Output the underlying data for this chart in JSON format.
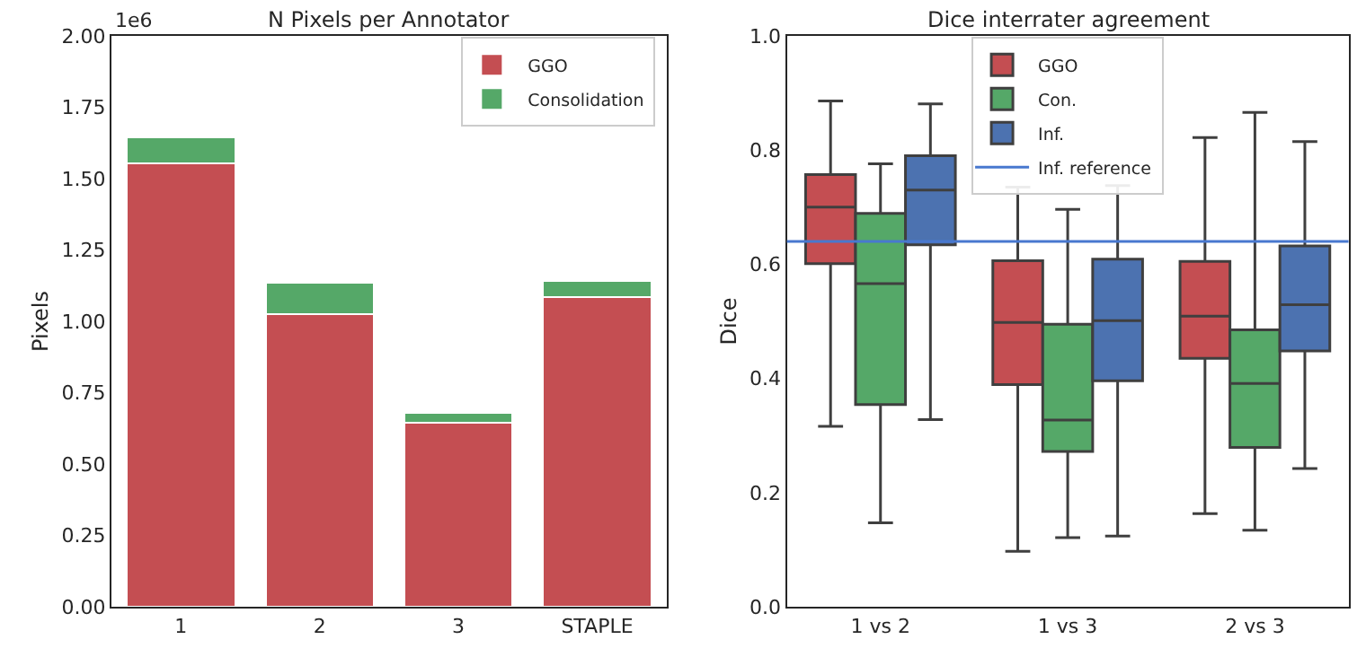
{
  "chart_data": [
    {
      "type": "bar",
      "title": "N Pixels per Annotator",
      "ylabel": "Pixels",
      "stacked": true,
      "legend": "top right",
      "categories": [
        "1",
        "2",
        "3",
        "STAPLE"
      ],
      "series": [
        {
          "name": "GGO",
          "color": "#c44e52",
          "values": [
            1.555,
            1.025,
            0.645,
            1.085
          ]
        },
        {
          "name": "Consolidation",
          "color": "#55a868",
          "values": [
            0.09,
            0.11,
            0.035,
            0.055
          ]
        }
      ],
      "ylim": [
        0,
        2.0
      ],
      "yticks": [
        {
          "value": 0,
          "label": "0.00"
        },
        {
          "value": 0.25,
          "label": "0.25"
        },
        {
          "value": 0.5,
          "label": "0.50"
        },
        {
          "value": 0.75,
          "label": "0.75"
        },
        {
          "value": 1.0,
          "label": "1.00"
        },
        {
          "value": 1.25,
          "label": "1.25"
        },
        {
          "value": 1.5,
          "label": "1.50"
        },
        {
          "value": 1.75,
          "label": "1.75"
        },
        {
          "value": 2.0,
          "label": "2.00"
        }
      ],
      "annotations": [
        "1e6"
      ]
    },
    {
      "type": "box",
      "title": "Dice interrater agreement",
      "ylabel": "Dice",
      "legend": "top",
      "categories": [
        "1 vs 2",
        "1 vs 3",
        "2 vs 3"
      ],
      "series": [
        {
          "name": "GGO",
          "color": "#c44e52",
          "boxes": [
            {
              "low": 0.316,
              "q1": 0.601,
              "median": 0.7,
              "q3": 0.757,
              "high": 0.886
            },
            {
              "low": 0.097,
              "q1": 0.389,
              "median": 0.498,
              "q3": 0.606,
              "high": 0.735
            },
            {
              "low": 0.163,
              "q1": 0.435,
              "median": 0.509,
              "q3": 0.605,
              "high": 0.822
            }
          ]
        },
        {
          "name": "Con.",
          "color": "#55a868",
          "boxes": [
            {
              "low": 0.147,
              "q1": 0.354,
              "median": 0.566,
              "q3": 0.689,
              "high": 0.776
            },
            {
              "low": 0.121,
              "q1": 0.272,
              "median": 0.327,
              "q3": 0.495,
              "high": 0.696
            },
            {
              "low": 0.134,
              "q1": 0.279,
              "median": 0.391,
              "q3": 0.485,
              "high": 0.866
            }
          ]
        },
        {
          "name": "Inf.",
          "color": "#4c72b0",
          "boxes": [
            {
              "low": 0.328,
              "q1": 0.634,
              "median": 0.73,
              "q3": 0.79,
              "high": 0.881
            },
            {
              "low": 0.124,
              "q1": 0.396,
              "median": 0.501,
              "q3": 0.609,
              "high": 0.738
            },
            {
              "low": 0.242,
              "q1": 0.448,
              "median": 0.529,
              "q3": 0.632,
              "high": 0.815
            }
          ]
        }
      ],
      "ylim": [
        0,
        1.0
      ],
      "yticks": [
        {
          "value": 0,
          "label": "0.0"
        },
        {
          "value": 0.2,
          "label": "0.2"
        },
        {
          "value": 0.4,
          "label": "0.4"
        },
        {
          "value": 0.6,
          "label": "0.6"
        },
        {
          "value": 0.8,
          "label": "0.8"
        },
        {
          "value": 1.0,
          "label": "1.0"
        }
      ],
      "ref_lines": [
        {
          "axis": "y",
          "value": 0.64,
          "label": "Inf. reference",
          "color": "#4878cf"
        }
      ]
    }
  ]
}
